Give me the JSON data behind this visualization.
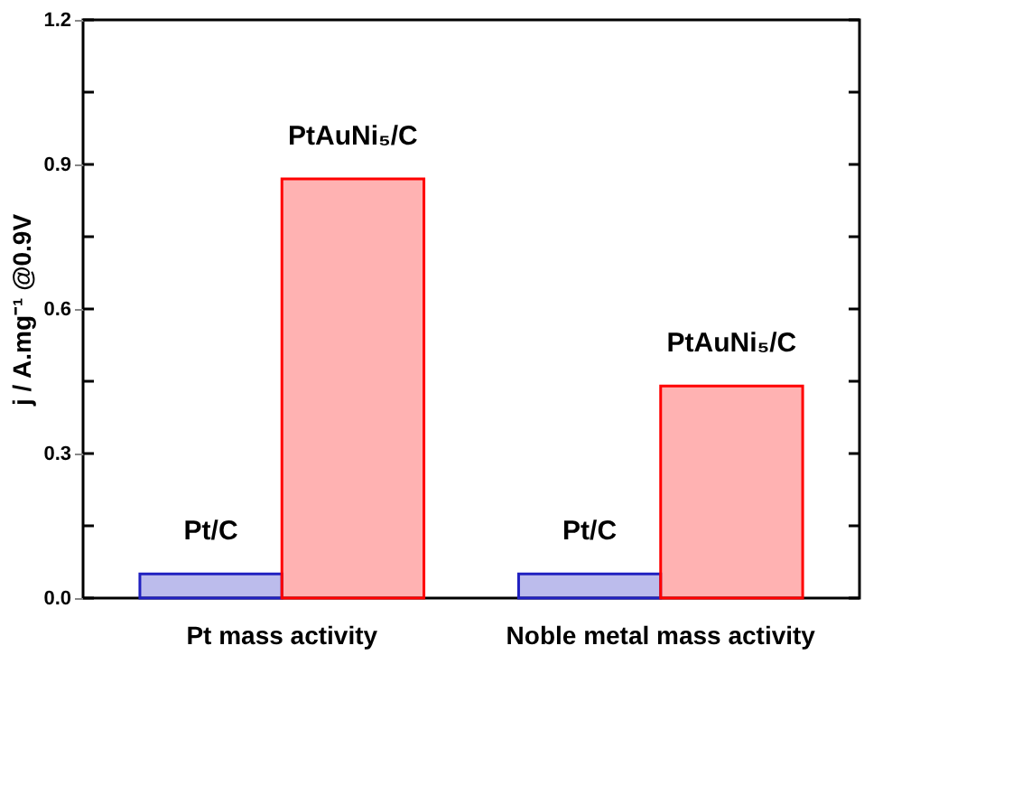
{
  "chart_data": {
    "type": "bar",
    "ylabel": "j / A.mg⁻¹ @0.9V",
    "categories": [
      "Pt mass activity",
      "Noble metal mass activity"
    ],
    "series": [
      {
        "name": "Pt/C",
        "color": "#2020c0",
        "values": [
          0.05,
          0.05
        ]
      },
      {
        "name": "PtAuNi₅/C",
        "color": "#ff0000",
        "values": [
          0.87,
          0.44
        ]
      }
    ],
    "ylim": [
      0,
      1.2
    ],
    "yticks": [
      {
        "value": 0,
        "label": "0.0"
      },
      {
        "value": 0.15,
        "label": null
      },
      {
        "value": 0.3,
        "label": "0.3"
      },
      {
        "value": 0.45,
        "label": null
      },
      {
        "value": 0.6,
        "label": "0.6"
      },
      {
        "value": 0.75,
        "label": null
      },
      {
        "value": 0.9,
        "label": "0.9"
      },
      {
        "value": 1.05,
        "label": null
      },
      {
        "value": 1.2,
        "label": "1.2"
      }
    ],
    "grid": false,
    "legend": false
  }
}
